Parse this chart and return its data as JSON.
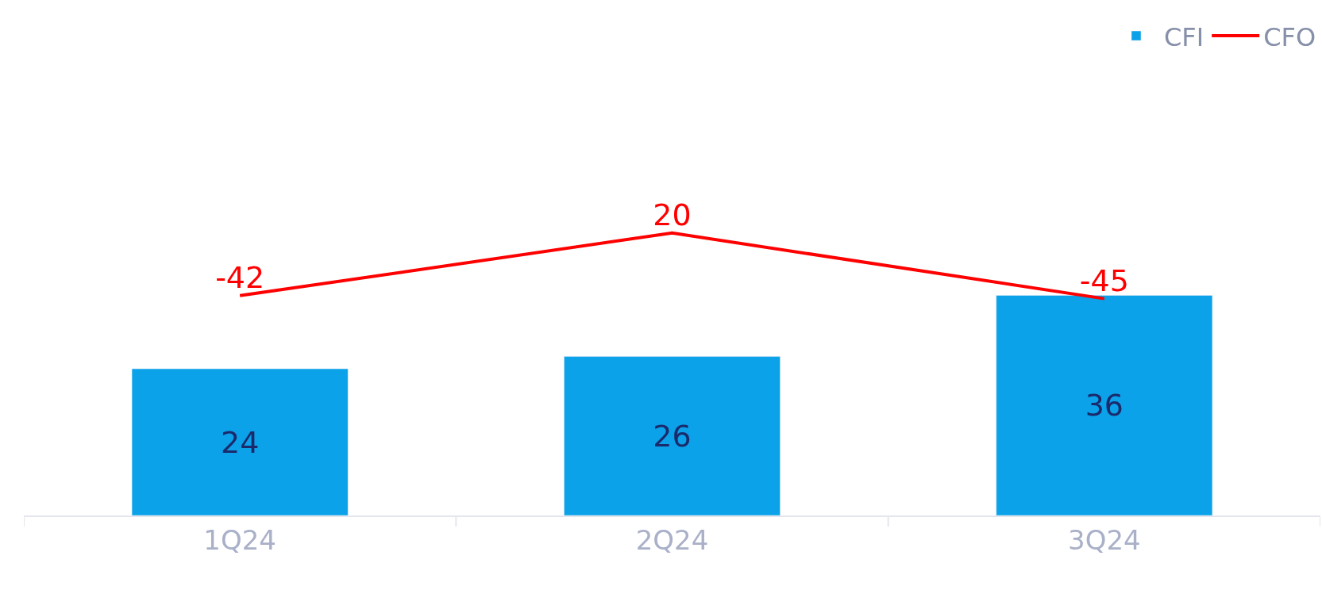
{
  "chart_data": {
    "type": "bar",
    "categories": [
      "1Q24",
      "2Q24",
      "3Q24"
    ],
    "series": [
      {
        "name": "CFI",
        "color": "#0ba2ea",
        "values": [
          24,
          26,
          36
        ]
      },
      {
        "name": "CFO",
        "type": "line",
        "axis": "y2",
        "color": "#ff0000",
        "values": [
          -42,
          20,
          -45
        ]
      }
    ],
    "data_labels": true,
    "tick_labels": "x",
    "legend": "top right",
    "marker": "none",
    "line_style": "solid"
  }
}
